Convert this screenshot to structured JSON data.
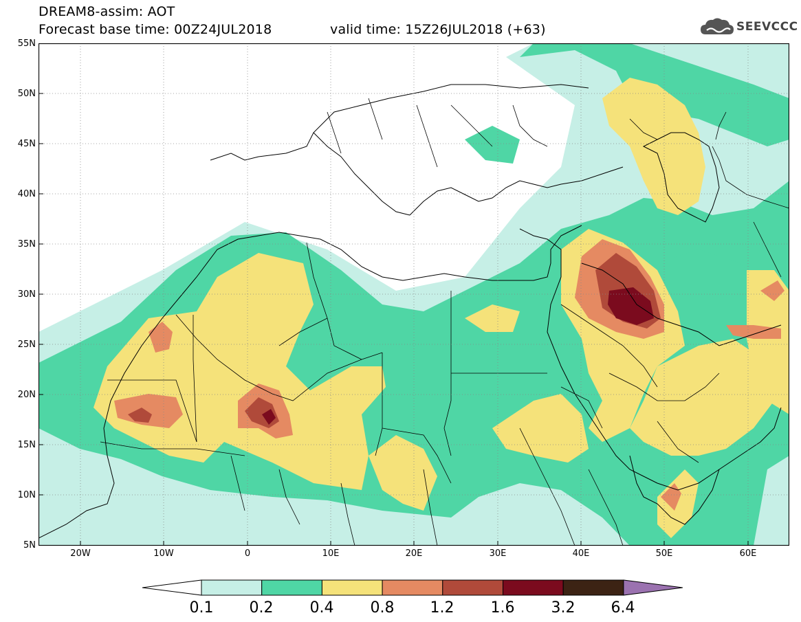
{
  "header": {
    "title": "DREAM8-assim: AOT",
    "base_time": "Forecast base time: 00Z24JUL2018",
    "valid_time": "valid time: 15Z26JUL2018 (+63)",
    "logo_text": "SEEVCCC",
    "logo_icon": "cloud-icon"
  },
  "axes": {
    "lat_labels": [
      "55N",
      "50N",
      "45N",
      "40N",
      "35N",
      "30N",
      "25N",
      "20N",
      "15N",
      "10N",
      "5N"
    ],
    "lon_labels": [
      "20W",
      "10W",
      "0",
      "10E",
      "20E",
      "30E",
      "40E",
      "50E",
      "60E"
    ]
  },
  "map": {
    "lon_range": [
      -25,
      65
    ],
    "lat_range": [
      5,
      55
    ],
    "variable": "Aerosol Optical Thickness",
    "grid": "dotted"
  },
  "colorbar": {
    "levels": [
      "0.1",
      "0.2",
      "0.4",
      "0.8",
      "1.2",
      "1.6",
      "3.2",
      "6.4"
    ],
    "colors": [
      "#ffffff",
      "#c6efe6",
      "#4fd6a5",
      "#f5e27a",
      "#e58a62",
      "#b04a3a",
      "#7b0b1e",
      "#3c2314",
      "#9b72b0"
    ]
  }
}
